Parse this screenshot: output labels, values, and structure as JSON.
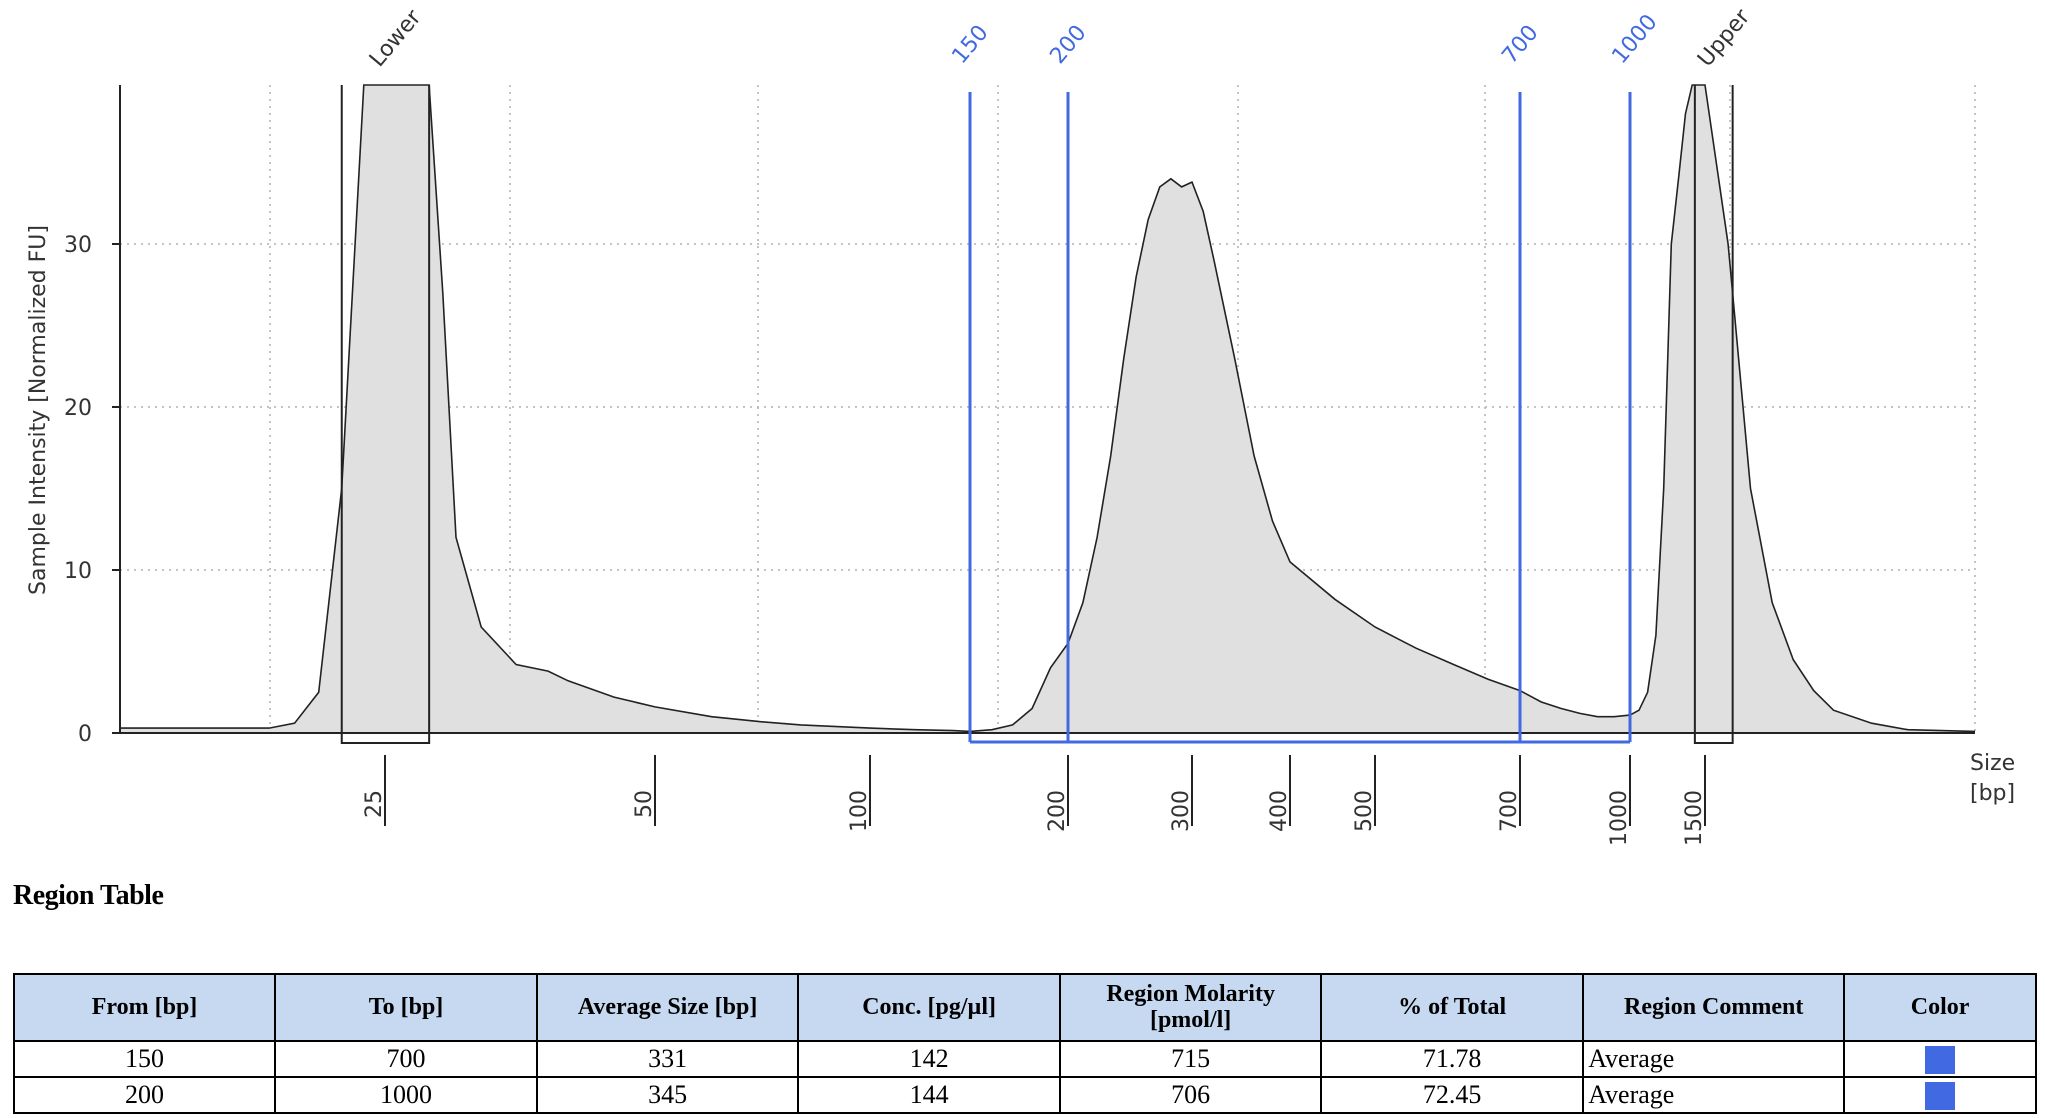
{
  "chart_data": {
    "type": "area",
    "ylabel": "Sample Intensity [Normalized FU]",
    "xlabel": "Size [bp]",
    "xlabel_lines": [
      "Size",
      "[bp]"
    ],
    "ylim": [
      0,
      40
    ],
    "y_ticks": [
      0,
      10,
      20,
      30
    ],
    "x_ticks": [
      "25",
      "50",
      "100",
      "200",
      "300",
      "400",
      "500",
      "700",
      "1000",
      "1500"
    ],
    "grid": true,
    "markers": [
      {
        "label": "Lower",
        "range_bp": [
          23,
          28
        ]
      },
      {
        "label": "Upper",
        "range_bp": [
          1420,
          1560
        ]
      }
    ],
    "regions": [
      {
        "from": "150",
        "to": "700",
        "color": "#4169e1"
      },
      {
        "from": "200",
        "to": "1000",
        "color": "#4169e1"
      }
    ],
    "trace": {
      "x": [
        15,
        18,
        20,
        21,
        22,
        23,
        24,
        25,
        26,
        27,
        28,
        29,
        30,
        32,
        35,
        38,
        40,
        45,
        50,
        60,
        70,
        80,
        100,
        120,
        140,
        150,
        160,
        170,
        180,
        190,
        200,
        210,
        220,
        230,
        240,
        250,
        260,
        270,
        280,
        290,
        300,
        310,
        320,
        340,
        360,
        380,
        400,
        450,
        500,
        550,
        600,
        650,
        700,
        750,
        800,
        850,
        900,
        950,
        1000,
        1050,
        1100,
        1150,
        1200,
        1250,
        1300,
        1350,
        1400,
        1450,
        1500,
        1550,
        1600,
        1650,
        1700,
        1750,
        1800,
        1900,
        2000,
        2200
      ],
      "y": [
        0.3,
        0.3,
        0.3,
        0.6,
        2.5,
        15,
        40,
        40,
        40,
        40,
        40,
        27,
        12,
        6.5,
        4.2,
        3.8,
        3.2,
        2.2,
        1.6,
        1.0,
        0.7,
        0.5,
        0.3,
        0.2,
        0.15,
        0.1,
        0.2,
        0.5,
        1.5,
        4,
        5.5,
        8,
        12,
        17,
        23,
        28,
        31.5,
        33.5,
        34,
        33.5,
        33.8,
        32,
        29,
        23,
        17,
        13,
        10.5,
        8.2,
        6.5,
        5.2,
        4.2,
        3.3,
        2.6,
        1.9,
        1.5,
        1.2,
        1.0,
        1.0,
        1.1,
        1.4,
        2.5,
        6,
        15,
        30,
        34,
        38,
        40,
        40,
        40,
        30,
        15,
        8,
        4.5,
        2.6,
        1.4,
        0.6,
        0.2,
        0.1
      ]
    }
  },
  "region_table": {
    "title": "Region Table",
    "headers": [
      "From [bp]",
      "To [bp]",
      "Average Size [bp]",
      "Conc. [pg/µl]",
      "Region Molarity [pmol/l]",
      "% of Total",
      "Region Comment",
      "Color"
    ],
    "rows": [
      {
        "from": "150",
        "to": "700",
        "avg_size": "331",
        "conc": "142",
        "molarity": "715",
        "pct_total": "71.78",
        "comment": "Average",
        "color": "#4169e1"
      },
      {
        "from": "200",
        "to": "1000",
        "avg_size": "345",
        "conc": "144",
        "molarity": "706",
        "pct_total": "72.45",
        "comment": "Average",
        "color": "#4169e1"
      }
    ]
  }
}
